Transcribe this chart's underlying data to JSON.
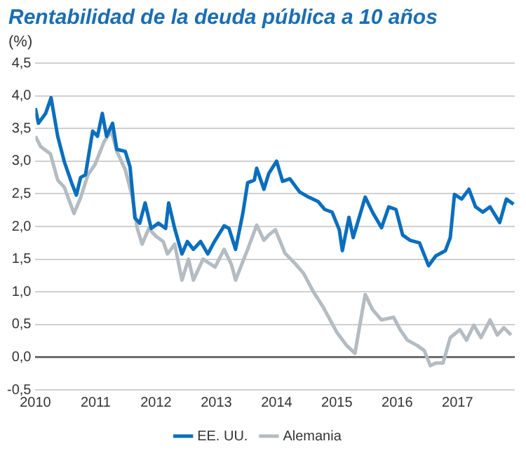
{
  "chart_data": {
    "type": "line",
    "title": "Rentabilidad de la deuda pública a 10 años",
    "subtitle": "(%)",
    "xlim": [
      2010,
      2017.95
    ],
    "xticks": [
      2010,
      2011,
      2012,
      2013,
      2014,
      2015,
      2016,
      2017
    ],
    "ylim": [
      -0.5,
      4.5
    ],
    "yticks": [
      {
        "value": -0.5,
        "label": "-0,5"
      },
      {
        "value": 0,
        "label": "0,0"
      },
      {
        "value": 0.5,
        "label": "0,5"
      },
      {
        "value": 1,
        "label": "1,0"
      },
      {
        "value": 1.5,
        "label": "1,5"
      },
      {
        "value": 2,
        "label": "2,0"
      },
      {
        "value": 2.5,
        "label": "2,5"
      },
      {
        "value": 3,
        "label": "3,0"
      },
      {
        "value": 3.5,
        "label": "3,5"
      },
      {
        "value": 4,
        "label": "4,0"
      },
      {
        "value": 4.5,
        "label": "4,5"
      }
    ],
    "grid": "y",
    "legend": "bottom",
    "marker": "none",
    "line_style": "solid",
    "series": [
      {
        "name": "EE. UU.",
        "color": "#0a6ebd",
        "x": [
          2010.0,
          2010.05,
          2010.17,
          2010.26,
          2010.37,
          2010.48,
          2010.6,
          2010.68,
          2010.75,
          2010.83,
          2010.95,
          2011.03,
          2011.11,
          2011.18,
          2011.28,
          2011.35,
          2011.49,
          2011.57,
          2011.61,
          2011.65,
          2011.73,
          2011.82,
          2011.92,
          2012.04,
          2012.16,
          2012.21,
          2012.31,
          2012.43,
          2012.52,
          2012.62,
          2012.74,
          2012.86,
          2012.97,
          2013.13,
          2013.21,
          2013.32,
          2013.44,
          2013.52,
          2013.63,
          2013.67,
          2013.79,
          2013.87,
          2014.0,
          2014.1,
          2014.22,
          2014.38,
          2014.53,
          2014.69,
          2014.8,
          2014.92,
          2015.04,
          2015.09,
          2015.2,
          2015.27,
          2015.47,
          2015.59,
          2015.74,
          2015.86,
          2015.98,
          2016.09,
          2016.21,
          2016.37,
          2016.52,
          2016.64,
          2016.8,
          2016.88,
          2016.95,
          2017.07,
          2017.19,
          2017.3,
          2017.42,
          2017.54,
          2017.7,
          2017.81,
          2017.93
        ],
        "values": [
          3.81,
          3.58,
          3.73,
          3.97,
          3.38,
          2.99,
          2.67,
          2.48,
          2.75,
          2.79,
          3.46,
          3.38,
          3.73,
          3.38,
          3.58,
          3.18,
          3.15,
          2.91,
          2.52,
          2.13,
          2.05,
          2.36,
          1.97,
          2.05,
          1.97,
          2.36,
          1.97,
          1.58,
          1.77,
          1.65,
          1.77,
          1.58,
          1.77,
          2.01,
          1.97,
          1.65,
          2.2,
          2.67,
          2.71,
          2.89,
          2.57,
          2.81,
          3.0,
          2.69,
          2.73,
          2.53,
          2.45,
          2.38,
          2.26,
          2.22,
          1.95,
          1.63,
          2.14,
          1.83,
          2.45,
          2.22,
          1.98,
          2.3,
          2.26,
          1.87,
          1.79,
          1.75,
          1.4,
          1.55,
          1.63,
          1.83,
          2.49,
          2.42,
          2.57,
          2.3,
          2.22,
          2.3,
          2.06,
          2.42,
          2.34
        ]
      },
      {
        "name": "Alemania",
        "color": "#b4bcc2",
        "x": [
          2010.0,
          2010.09,
          2010.25,
          2010.37,
          2010.48,
          2010.64,
          2010.75,
          2010.87,
          2010.99,
          2011.14,
          2011.26,
          2011.35,
          2011.49,
          2011.61,
          2011.69,
          2011.77,
          2011.88,
          2012.0,
          2012.12,
          2012.19,
          2012.31,
          2012.43,
          2012.54,
          2012.62,
          2012.78,
          2012.98,
          2013.13,
          2013.25,
          2013.32,
          2013.52,
          2013.67,
          2013.79,
          2013.87,
          2013.98,
          2014.14,
          2014.3,
          2014.45,
          2014.61,
          2014.77,
          2015.0,
          2015.16,
          2015.3,
          2015.38,
          2015.47,
          2015.59,
          2015.74,
          2015.94,
          2016.05,
          2016.17,
          2016.33,
          2016.45,
          2016.55,
          2016.64,
          2016.76,
          2016.88,
          2017.04,
          2017.15,
          2017.27,
          2017.39,
          2017.54,
          2017.66,
          2017.77,
          2017.89
        ],
        "values": [
          3.38,
          3.22,
          3.11,
          2.71,
          2.6,
          2.2,
          2.44,
          2.79,
          2.95,
          3.3,
          3.46,
          3.15,
          2.87,
          2.44,
          1.97,
          1.73,
          1.97,
          1.85,
          1.77,
          1.58,
          1.73,
          1.18,
          1.5,
          1.18,
          1.5,
          1.38,
          1.65,
          1.42,
          1.18,
          1.65,
          2.02,
          1.79,
          1.87,
          1.95,
          1.59,
          1.44,
          1.28,
          1.0,
          0.77,
          0.38,
          0.18,
          0.06,
          0.49,
          0.96,
          0.73,
          0.57,
          0.61,
          0.42,
          0.26,
          0.18,
          0.1,
          -0.13,
          -0.09,
          -0.09,
          0.3,
          0.42,
          0.26,
          0.49,
          0.3,
          0.57,
          0.34,
          0.45,
          0.34
        ]
      }
    ]
  }
}
